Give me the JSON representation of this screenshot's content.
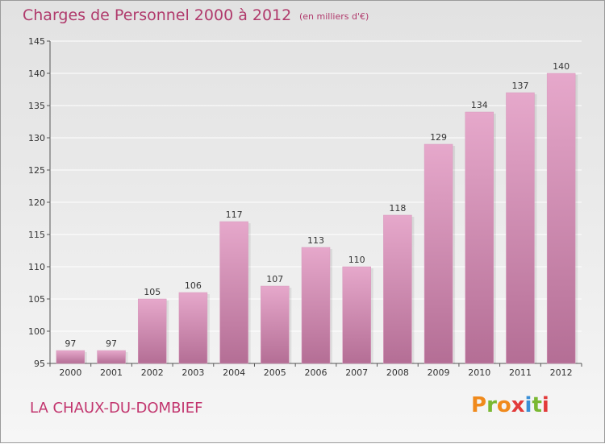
{
  "header": {
    "title": "Charges de Personnel 2000 à 2012",
    "subtitle": "(en milliers d'€)"
  },
  "footer": {
    "city": "LA CHAUX-DU-DOMBIEF",
    "logo_text": "Proxiti"
  },
  "colors": {
    "title": "#b03a6c",
    "bar_light": "#e6a8cb",
    "bar_dark": "#b46e95",
    "logo_letters": [
      "#f08a1c",
      "#7ab832",
      "#f08a1c",
      "#e23a3a",
      "#3a8fd6",
      "#7ab832",
      "#e23a3a"
    ]
  },
  "chart_data": {
    "type": "bar",
    "categories": [
      "2000",
      "2001",
      "2002",
      "2003",
      "2004",
      "2005",
      "2006",
      "2007",
      "2008",
      "2009",
      "2010",
      "2011",
      "2012"
    ],
    "values": [
      97,
      97,
      105,
      106,
      117,
      107,
      113,
      110,
      118,
      129,
      134,
      137,
      140
    ],
    "title": "Charges de Personnel 2000 à 2012",
    "subtitle": "(en milliers d'€)",
    "xlabel": "",
    "ylabel": "",
    "ylim": [
      95,
      145
    ],
    "yticks": [
      95,
      100,
      105,
      110,
      115,
      120,
      125,
      130,
      135,
      140,
      145
    ],
    "grid": true
  }
}
